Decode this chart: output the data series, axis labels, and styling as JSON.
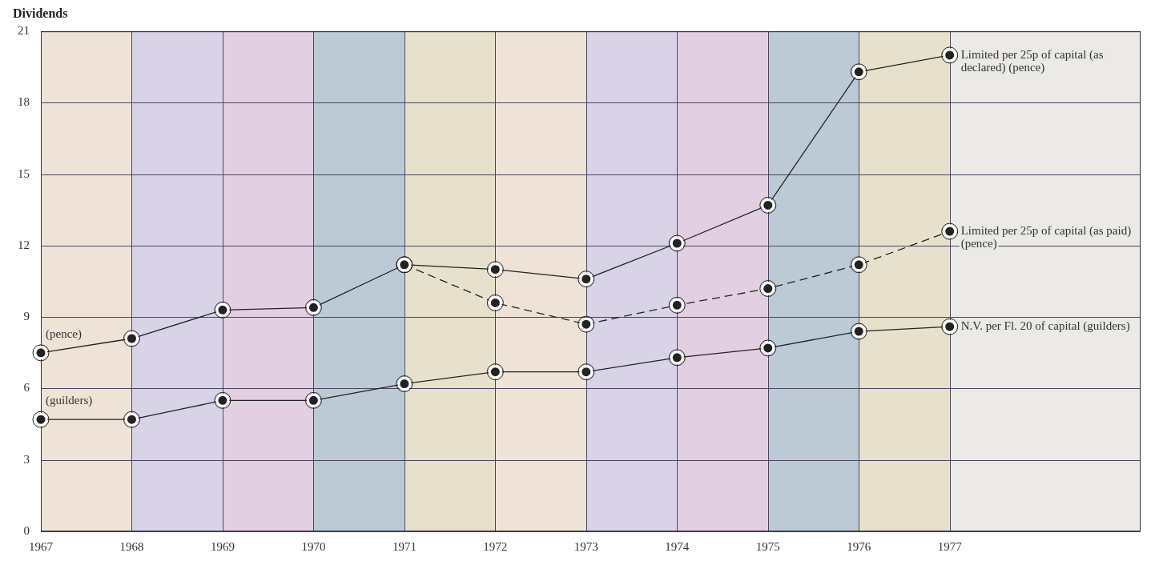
{
  "chart_data": {
    "type": "line",
    "title": "Dividends",
    "x": [
      1967,
      1968,
      1969,
      1970,
      1971,
      1972,
      1973,
      1974,
      1975,
      1976,
      1977
    ],
    "xlim": [
      1967,
      1979.1
    ],
    "xticks": [
      1967,
      1968,
      1969,
      1970,
      1971,
      1972,
      1973,
      1974,
      1975,
      1976,
      1977
    ],
    "ylim": [
      0,
      21
    ],
    "yticks": [
      0,
      3,
      6,
      9,
      12,
      15,
      18,
      21
    ],
    "grid": true,
    "marker": "circle",
    "legend": "right",
    "series": [
      {
        "name": "Limited per 25p of capital (as declared) (pence)",
        "color": "#222222",
        "line_style": "solid",
        "values": [
          7.5,
          8.1,
          9.3,
          9.4,
          11.2,
          11.0,
          10.6,
          12.1,
          13.7,
          19.3,
          20.0
        ]
      },
      {
        "name": "Limited per 25p of capital (as paid) (pence)",
        "color": "#222222",
        "line_style": "dashed",
        "values": [
          null,
          null,
          null,
          null,
          11.2,
          9.6,
          8.7,
          9.5,
          10.2,
          11.2,
          12.6
        ]
      },
      {
        "name": "N.V. per Fl. 20 of capital (guilders)",
        "color": "#222222",
        "line_style": "solid",
        "values": [
          4.7,
          4.7,
          5.5,
          5.5,
          6.2,
          6.7,
          6.7,
          7.3,
          7.7,
          8.4,
          8.6
        ]
      }
    ],
    "bands": [
      {
        "axis": "x",
        "from": 1967,
        "to": 1968,
        "color": "#efe3d8"
      },
      {
        "axis": "x",
        "from": 1968,
        "to": 1969,
        "color": "#d9d3e8"
      },
      {
        "axis": "x",
        "from": 1969,
        "to": 1970,
        "color": "#e3cfe2"
      },
      {
        "axis": "x",
        "from": 1970,
        "to": 1971,
        "color": "#bccad6"
      },
      {
        "axis": "x",
        "from": 1971,
        "to": 1972,
        "color": "#e7e0cc"
      },
      {
        "axis": "x",
        "from": 1972,
        "to": 1973,
        "color": "#efe3d8"
      },
      {
        "axis": "x",
        "from": 1973,
        "to": 1974,
        "color": "#d9d3e8"
      },
      {
        "axis": "x",
        "from": 1974,
        "to": 1975,
        "color": "#e3cfe2"
      },
      {
        "axis": "x",
        "from": 1975,
        "to": 1976,
        "color": "#bccad6"
      },
      {
        "axis": "x",
        "from": 1976,
        "to": 1977,
        "color": "#e7e0cc"
      },
      {
        "axis": "x",
        "from": 1977,
        "to": 1979.1,
        "color": "#eceae7"
      }
    ],
    "annotations": [
      {
        "text": "(pence)",
        "x": 1967,
        "y": 7.5
      },
      {
        "text": "(guilders)",
        "x": 1967,
        "y": 4.7
      }
    ]
  }
}
